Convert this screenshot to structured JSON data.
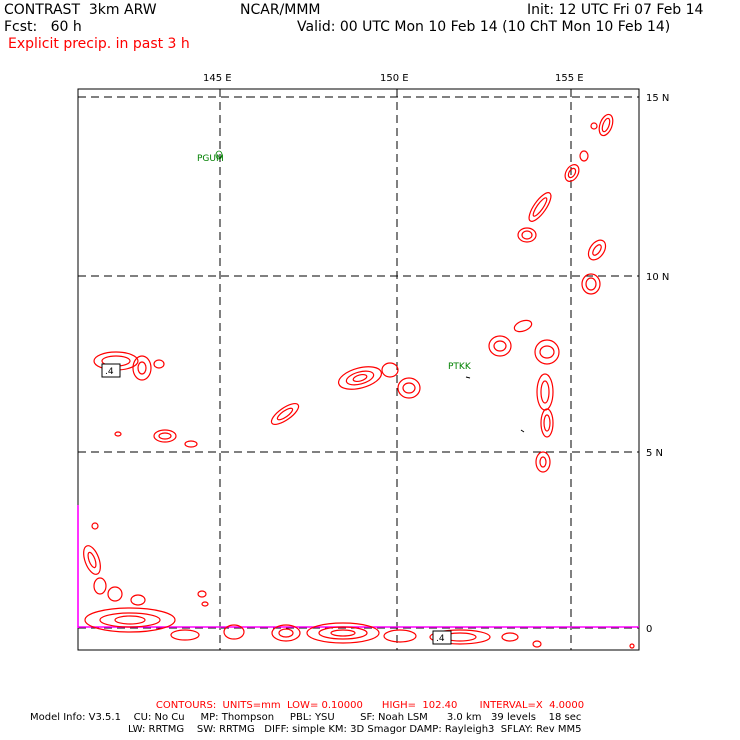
{
  "header": {
    "model": "CONTRAST  3km ARW",
    "center": "NCAR/MMM",
    "init": "Init: 12 UTC Fri 07 Feb 14",
    "fcst": "Fcst:   60 h",
    "valid": "Valid: 00 UTC Mon 10 Feb 14 (10 ChT Mon 10 Feb 14)",
    "field": "Explicit precip. in past 3 h"
  },
  "map": {
    "lon_labels": [
      "145 E",
      "150 E",
      "155 E"
    ],
    "lat_labels": [
      "15 N",
      "10 N",
      "5 N",
      "0"
    ],
    "stations": [
      {
        "id": "PGUM"
      },
      {
        "id": "PTKK"
      }
    ],
    "contour_labels": [
      ".4",
      ".4"
    ],
    "colors": {
      "contour": "#ff0000",
      "grid": "#000000",
      "station": "#008000",
      "boundary": "#ff00ff"
    }
  },
  "footer": {
    "contours": "CONTOURS:  UNITS=mm  LOW= 0.10000      HIGH=  102.40       INTERVAL=X  4.0000",
    "model_info_1": "Model Info: V3.5.1    CU: No Cu     MP: Thompson     PBL: YSU        SF: Noah LSM      3.0 km   39 levels    18 sec",
    "model_info_2": "LW: RRTMG    SW: RRTMG   DIFF: simple KM: 3D Smagor DAMP: Rayleigh3  SFLAY: Rev MM5"
  }
}
